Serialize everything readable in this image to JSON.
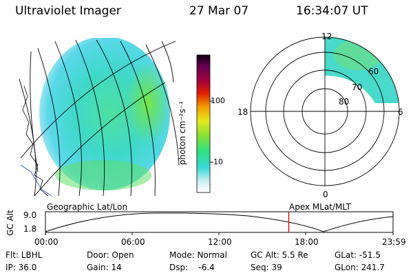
{
  "header": {
    "title": "Ultraviolet Imager",
    "date": "27 Mar 07",
    "time": "16:34:07 UT"
  },
  "colorbar": {
    "unit_label": "photon cm⁻²s⁻¹",
    "tick_100": "100",
    "tick_10": "10"
  },
  "polar": {
    "label_top": "12",
    "label_left": "18",
    "label_right": "6",
    "label_bottom": "0",
    "ring_60": "60",
    "ring_70": "70",
    "ring_80": "80"
  },
  "timeline": {
    "left_caption": "Geographic Lat/Lon",
    "right_caption": "Apex MLat/MLT",
    "axis_label": "GC Alt",
    "y_top": "9.0",
    "y_bottom": "1.8",
    "ticks": [
      "00:00",
      "06:00",
      "12:00",
      "18:00",
      "23:59"
    ],
    "current_fraction": 0.7
  },
  "info": {
    "flt": "Flt: LBHL",
    "ip": "IP: 36.0",
    "door": "Door: Open",
    "gain": "Gain: 14",
    "mode": "Mode: Normal",
    "dsp": "Dsp:    -6.4",
    "gcalt": "GC Alt: 5.5 Re",
    "seq": "Seq: 39",
    "glat": "GLat: -51.5",
    "glon": "GLon: 241.7"
  },
  "colors": {
    "earth_base": "#3ed6d0",
    "earth_green": "#5de26a",
    "marker": "#e00000"
  }
}
